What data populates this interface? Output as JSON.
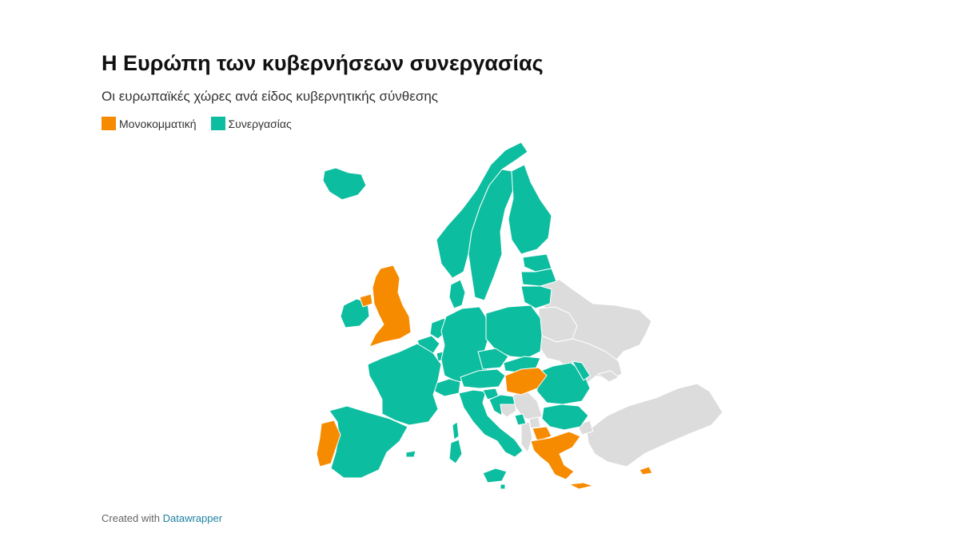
{
  "header": {
    "title": "Η Ευρώπη των κυβερνήσεων συνεργασίας",
    "subtitle": "Οι ευρωπαϊκές χώρες ανά είδος κυβερνητικής σύνθεσης"
  },
  "legend": {
    "items": [
      {
        "label": "Μονοκομματική",
        "color": "#f78b00"
      },
      {
        "label": "Συνεργασίας",
        "color": "#0cbd9f"
      }
    ]
  },
  "map": {
    "no_data_color": "#dcdcdc",
    "single_party_countries": [
      "United Kingdom",
      "Portugal",
      "Hungary",
      "Greece",
      "North Macedonia",
      "Cyprus"
    ],
    "coalition_countries": [
      "Iceland",
      "Norway",
      "Sweden",
      "Finland",
      "Estonia",
      "Latvia",
      "Lithuania",
      "Ireland",
      "Denmark",
      "Netherlands",
      "Belgium",
      "Luxembourg",
      "Germany",
      "Poland",
      "Czechia",
      "Slovakia",
      "Austria",
      "Switzerland",
      "France",
      "Spain",
      "Italy",
      "Slovenia",
      "Croatia",
      "Romania",
      "Bulgaria",
      "Moldova",
      "Malta",
      "Montenegro"
    ],
    "no_data_countries": [
      "Russia",
      "Belarus",
      "Ukraine",
      "Turkey",
      "Serbia",
      "Bosnia and Herzegovina",
      "Kosovo",
      "Albania"
    ]
  },
  "footer": {
    "prefix": "Created with",
    "link": "Datawrapper"
  }
}
